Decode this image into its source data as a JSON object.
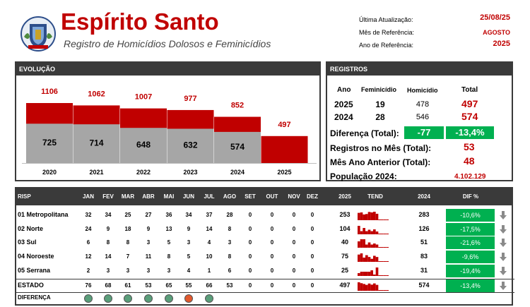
{
  "header": {
    "title": "Espírito Santo",
    "subtitle": "Registro de Homicídios Dolosos e Feminicídios",
    "meta": [
      {
        "label": "Última Atualização:",
        "value": "25/08/25"
      },
      {
        "label": "Mês de Referência:",
        "value": "AGOSTO"
      },
      {
        "label": "Ano de Referência:",
        "value": "2025"
      }
    ]
  },
  "evolucao": {
    "heading": "EVOLUÇÃO",
    "chart_data": {
      "type": "bar",
      "categories": [
        "2020",
        "2021",
        "2022",
        "2023",
        "2024",
        "2025"
      ],
      "series": [
        {
          "values": [
            725,
            714,
            648,
            632,
            574,
            null
          ]
        },
        {
          "values": [
            1106,
            1062,
            1007,
            977,
            852,
            497
          ]
        }
      ],
      "colors": {
        "grey": "#a6a6a6",
        "red": "#c00000"
      }
    }
  },
  "registros": {
    "heading": "REGISTROS",
    "col_ano": "Ano",
    "col_fem": "Feminicídio",
    "col_hom": "Homicídio",
    "col_total": "Total",
    "rows": [
      {
        "ano": "2025",
        "fem": "19",
        "hom": "478",
        "total": "497"
      },
      {
        "ano": "2024",
        "fem": "28",
        "hom": "546",
        "total": "574"
      }
    ],
    "diferenca_label": "Diferença (Total):",
    "diferenca_abs": "-77",
    "diferenca_pct": "-13,4%",
    "mes_label": "Registros no Mês (Total):",
    "mes_value": "53",
    "mes_ant_label": "Mês Ano Anterior (Total):",
    "mes_ant_value": "48",
    "pop_label": "População 2024:",
    "pop_value": "4.102.129"
  },
  "tabela": {
    "headers": {
      "risp": "RISP",
      "months": [
        "JAN",
        "FEV",
        "MAR",
        "ABR",
        "MAI",
        "JUN",
        "JUL",
        "AGO",
        "SET",
        "OUT",
        "NOV",
        "DEZ"
      ],
      "y2025": "2025",
      "tend": "TEND",
      "y2024": "2024",
      "dif": "DIF %"
    },
    "rows": [
      {
        "name": "01 Metropolitana",
        "m": [
          "32",
          "34",
          "25",
          "27",
          "36",
          "34",
          "37",
          "28",
          "0",
          "0",
          "0",
          "0"
        ],
        "y2025": "253",
        "y2024": "283",
        "dif": "-10,6%"
      },
      {
        "name": "02 Norte",
        "m": [
          "24",
          "9",
          "18",
          "9",
          "13",
          "9",
          "14",
          "8",
          "0",
          "0",
          "0",
          "0"
        ],
        "y2025": "104",
        "y2024": "126",
        "dif": "-17,5%"
      },
      {
        "name": "03 Sul",
        "m": [
          "6",
          "8",
          "8",
          "3",
          "5",
          "3",
          "4",
          "3",
          "0",
          "0",
          "0",
          "0"
        ],
        "y2025": "40",
        "y2024": "51",
        "dif": "-21,6%"
      },
      {
        "name": "04 Noroeste",
        "m": [
          "12",
          "14",
          "7",
          "11",
          "8",
          "5",
          "10",
          "8",
          "0",
          "0",
          "0",
          "0"
        ],
        "y2025": "75",
        "y2024": "83",
        "dif": "-9,6%"
      },
      {
        "name": "05 Serrana",
        "m": [
          "2",
          "3",
          "3",
          "3",
          "3",
          "4",
          "1",
          "6",
          "0",
          "0",
          "0",
          "0"
        ],
        "y2025": "25",
        "y2024": "31",
        "dif": "-19,4%"
      }
    ],
    "estado": {
      "name": "ESTADO",
      "m": [
        "76",
        "68",
        "61",
        "53",
        "65",
        "55",
        "66",
        "53",
        "0",
        "0",
        "0",
        "0"
      ],
      "y2025": "497",
      "y2024": "574",
      "dif": "-13,4%"
    },
    "diferenca": {
      "name": "DIFERENÇA",
      "dots": [
        "green",
        "green",
        "green",
        "green",
        "green",
        "red",
        "green"
      ]
    },
    "colors": {
      "green": "#5a9e7a",
      "red": "#e2592e"
    }
  }
}
